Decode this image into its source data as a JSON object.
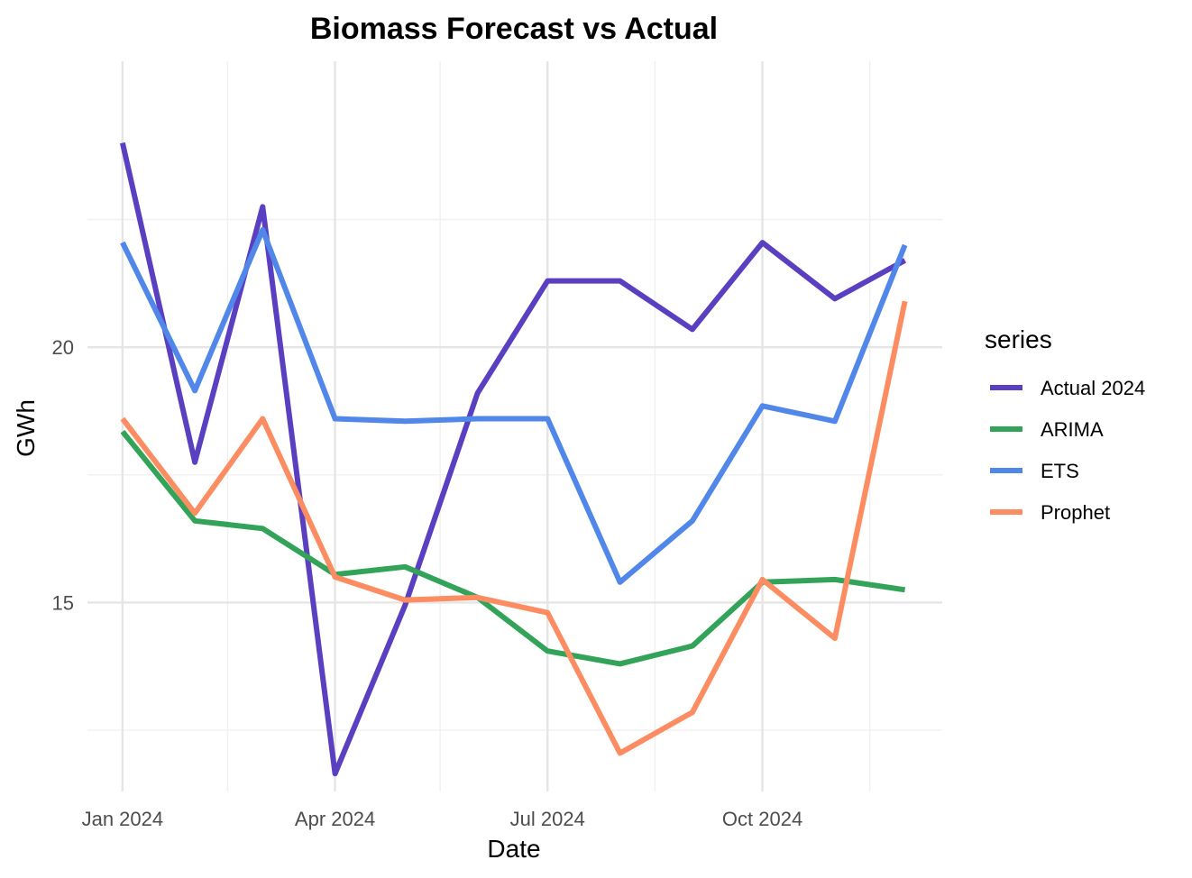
{
  "chart_data": {
    "type": "line",
    "title": "Biomass Forecast vs Actual",
    "xlabel": "Date",
    "ylabel": "GWh",
    "x": [
      "2024-01-01",
      "2024-02-01",
      "2024-03-01",
      "2024-04-01",
      "2024-05-01",
      "2024-06-01",
      "2024-07-01",
      "2024-08-01",
      "2024-09-01",
      "2024-10-01",
      "2024-11-01",
      "2024-12-01"
    ],
    "x_ticks": [
      {
        "date": "2024-01-01",
        "label": "Jan 2024"
      },
      {
        "date": "2024-04-01",
        "label": "Apr 2024"
      },
      {
        "date": "2024-07-01",
        "label": "Jul 2024"
      },
      {
        "date": "2024-10-01",
        "label": "Oct 2024"
      }
    ],
    "x_minor_ticks": [
      "2024-02-15",
      "2024-05-16",
      "2024-08-16",
      "2024-11-16"
    ],
    "y_ticks": [
      15,
      20
    ],
    "y_minor_ticks": [
      12.5,
      17.5,
      22.5
    ],
    "xlim": [
      "2023-12-17",
      "2024-12-17"
    ],
    "ylim": [
      11.3,
      25.6
    ],
    "grid": true,
    "legend": {
      "title": "series",
      "position": "right"
    },
    "series": [
      {
        "name": "Actual 2024",
        "color": "#5a3fc0",
        "values": [
          24.0,
          17.75,
          22.75,
          11.65,
          14.95,
          19.1,
          21.3,
          21.3,
          20.35,
          22.05,
          20.95,
          21.7
        ]
      },
      {
        "name": "ARIMA",
        "color": "#33a35a",
        "values": [
          18.35,
          16.6,
          16.45,
          15.55,
          15.7,
          15.1,
          14.05,
          13.8,
          14.15,
          15.4,
          15.45,
          15.25
        ]
      },
      {
        "name": "ETS",
        "color": "#5087e8",
        "values": [
          22.05,
          19.15,
          22.3,
          18.6,
          18.55,
          18.6,
          18.6,
          15.4,
          16.6,
          18.85,
          18.55,
          22.0
        ]
      },
      {
        "name": "Prophet",
        "color": "#fc8d62",
        "values": [
          18.6,
          16.75,
          18.6,
          15.5,
          15.05,
          15.1,
          14.8,
          12.05,
          12.85,
          15.45,
          14.3,
          20.9
        ]
      }
    ]
  }
}
